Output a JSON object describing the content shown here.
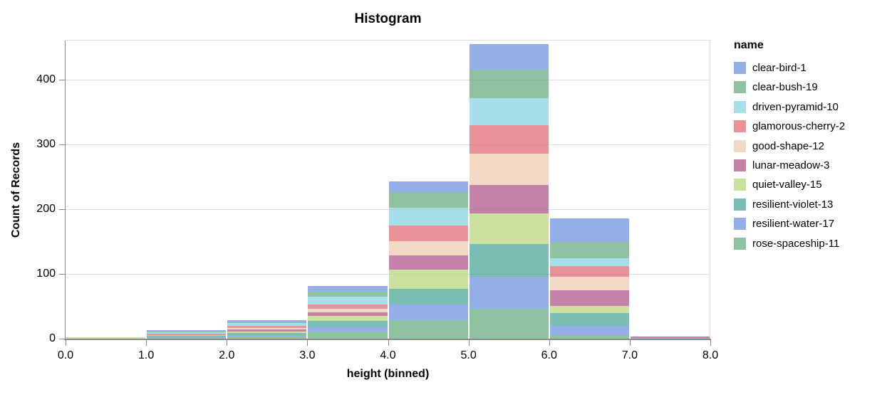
{
  "chart_data": {
    "type": "bar",
    "stacked": true,
    "title": "Histogram",
    "xlabel": "height (binned)",
    "ylabel": "Count of Records",
    "legend_title": "name",
    "bin_edges": [
      0,
      1,
      2,
      3,
      4,
      5,
      6,
      7,
      8
    ],
    "x_ticks": [
      "0.0",
      "1.0",
      "2.0",
      "3.0",
      "4.0",
      "5.0",
      "6.0",
      "7.0",
      "8.0"
    ],
    "y_ticks": [
      0,
      100,
      200,
      300,
      400
    ],
    "ylim": [
      0,
      460
    ],
    "grid": true,
    "legend_position": "right",
    "stack_order": "first-series-on-top",
    "bin_totals": [
      2,
      13,
      29,
      81,
      243,
      455,
      185,
      3
    ],
    "series": [
      {
        "name": "clear-bird-1",
        "color": "#668BDE",
        "values": [
          0,
          1,
          4,
          9,
          17,
          40,
          36,
          0
        ]
      },
      {
        "name": "clear-bush-19",
        "color": "#5FA877",
        "values": [
          0,
          2,
          1,
          7,
          24,
          44,
          25,
          0
        ]
      },
      {
        "name": "driven-pyramid-10",
        "color": "#80D0E0",
        "values": [
          0,
          2,
          4,
          12,
          27,
          42,
          12,
          0
        ]
      },
      {
        "name": "glamorous-cherry-2",
        "color": "#DE656F",
        "values": [
          0,
          2,
          4,
          7,
          25,
          44,
          16,
          0
        ]
      },
      {
        "name": "good-shape-12",
        "color": "#ECC9AC",
        "values": [
          0,
          1,
          2,
          5,
          22,
          48,
          21,
          0
        ]
      },
      {
        "name": "lunar-meadow-3",
        "color": "#AE4B83",
        "values": [
          0,
          0,
          3,
          6,
          22,
          44,
          25,
          2
        ]
      },
      {
        "name": "quiet-valley-15",
        "color": "#B6D377",
        "values": [
          2,
          1,
          2,
          8,
          29,
          47,
          11,
          0
        ]
      },
      {
        "name": "resilient-violet-13",
        "color": "#41A192",
        "values": [
          0,
          2,
          4,
          9,
          24,
          50,
          19,
          0
        ]
      },
      {
        "name": "resilient-water-17",
        "color": "#668BDE",
        "values": [
          0,
          1,
          2,
          7,
          25,
          50,
          15,
          1
        ]
      },
      {
        "name": "rose-spaceship-11",
        "color": "#5FA877",
        "values": [
          0,
          1,
          3,
          11,
          28,
          46,
          5,
          0
        ]
      }
    ],
    "style": {
      "series_opacity": 0.7,
      "grid_color": "#dddddd",
      "axis_color": "#888888",
      "text_color": "#000000",
      "background": "#ffffff"
    }
  }
}
